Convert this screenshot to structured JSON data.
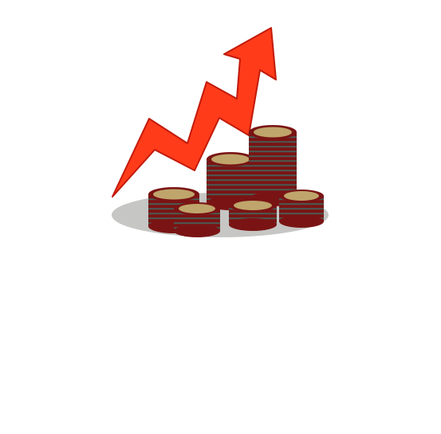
{
  "illustration": {
    "subject": "growth-chart-with-coins",
    "colors": {
      "background": "#ffffff",
      "shadow": "#c6c6c4",
      "arrow": "#ff3b1a",
      "arrow_edge": "#c21a0a",
      "coin_edge": "#7a1414",
      "coin_band": "#4a5a52",
      "coin_face": "#bfa56b"
    }
  }
}
